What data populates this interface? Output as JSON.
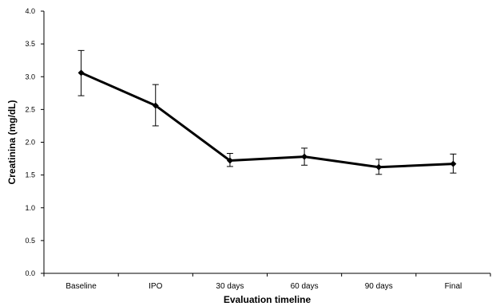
{
  "chart_data": {
    "type": "line",
    "categories": [
      "Baseline",
      "IPO",
      "30 days",
      "60 days",
      "90 days",
      "Final"
    ],
    "series": [
      {
        "values": [
          3.06,
          2.56,
          1.72,
          1.78,
          1.62,
          1.67
        ],
        "error_upper": [
          3.4,
          2.88,
          1.83,
          1.91,
          1.74,
          1.82
        ],
        "error_lower": [
          2.71,
          2.25,
          1.63,
          1.65,
          1.51,
          1.53
        ]
      }
    ],
    "xlabel": "Evaluation timeline",
    "ylabel": "Creatinina (mg/dL)",
    "ylim": [
      0,
      4
    ],
    "yticks": [
      "0.0",
      "0.5",
      "1.0",
      "1.5",
      "2.0",
      "2.5",
      "3.0",
      "3.5",
      "4.0"
    ],
    "grid": false,
    "legend": "none",
    "line_color": "#000000"
  }
}
